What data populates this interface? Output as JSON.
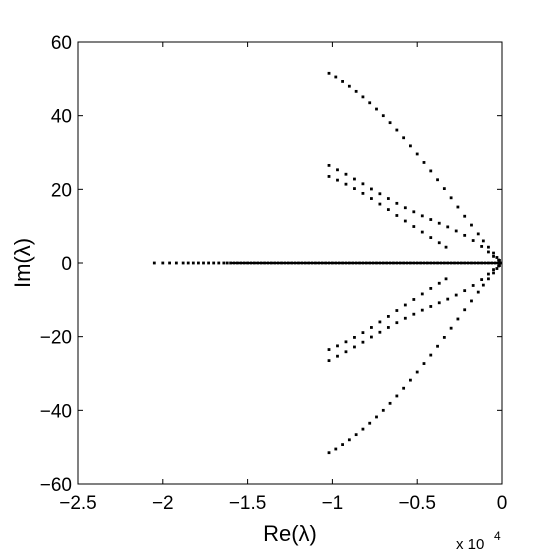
{
  "chart_data": {
    "type": "scatter",
    "title": "",
    "xlabel": "Re(λ)",
    "ylabel": "Im(λ)",
    "x_scale_note": "x 10",
    "x_scale_exponent": "4",
    "xlim": [
      -2.5,
      0
    ],
    "ylim": [
      -60,
      60
    ],
    "x_ticks": [
      -2.5,
      -2,
      -1.5,
      -1,
      -0.5,
      0
    ],
    "x_tick_labels": [
      "−2.5",
      "−2",
      "−1.5",
      "−1",
      "−0.5",
      "0"
    ],
    "y_ticks": [
      -60,
      -40,
      -20,
      0,
      20,
      40,
      60
    ],
    "y_tick_labels": [
      "−60",
      "−40",
      "−20",
      "0",
      "20",
      "40",
      "60"
    ],
    "grid": false,
    "marker_color": "#000000",
    "series": [
      {
        "values": [
          [
            -1.02,
            51.5
          ],
          [
            -0.98,
            50.5
          ],
          [
            -0.94,
            49.3
          ],
          [
            -0.9,
            48.0
          ],
          [
            -0.86,
            46.6
          ],
          [
            -0.82,
            45.1
          ],
          [
            -0.78,
            43.5
          ],
          [
            -0.74,
            41.8
          ],
          [
            -0.7,
            40.0
          ],
          [
            -0.66,
            38.1
          ],
          [
            -0.62,
            36.1
          ],
          [
            -0.58,
            34.0
          ],
          [
            -0.54,
            31.8
          ],
          [
            -0.5,
            29.6
          ],
          [
            -0.46,
            27.3
          ],
          [
            -0.42,
            25.0
          ],
          [
            -0.38,
            22.6
          ],
          [
            -0.34,
            20.2
          ],
          [
            -0.3,
            17.7
          ],
          [
            -0.26,
            15.2
          ],
          [
            -0.22,
            12.7
          ],
          [
            -0.18,
            10.3
          ],
          [
            -0.14,
            7.9
          ],
          [
            -0.11,
            6.0
          ],
          [
            -0.08,
            4.3
          ],
          [
            -0.05,
            2.7
          ],
          [
            -0.03,
            1.5
          ],
          [
            -0.015,
            0.7
          ],
          [
            -1.02,
            26.5
          ],
          [
            -0.97,
            25.3
          ],
          [
            -0.92,
            24.1
          ],
          [
            -0.87,
            22.8
          ],
          [
            -0.82,
            21.5
          ],
          [
            -0.77,
            20.1
          ],
          [
            -0.72,
            18.8
          ],
          [
            -0.67,
            17.5
          ],
          [
            -0.62,
            16.2
          ],
          [
            -0.57,
            15.0
          ],
          [
            -0.52,
            13.9
          ],
          [
            -0.47,
            12.8
          ],
          [
            -0.42,
            11.8
          ],
          [
            -0.37,
            10.8
          ],
          [
            -0.32,
            9.8
          ],
          [
            -0.27,
            8.7
          ],
          [
            -0.22,
            7.5
          ],
          [
            -0.17,
            6.1
          ],
          [
            -0.12,
            4.5
          ],
          [
            -0.08,
            3.0
          ],
          [
            -0.05,
            1.8
          ],
          [
            -0.02,
            0.8
          ],
          [
            -1.02,
            23.5
          ],
          [
            -0.97,
            22.5
          ],
          [
            -0.92,
            21.4
          ],
          [
            -0.87,
            20.2
          ],
          [
            -0.82,
            18.9
          ],
          [
            -0.77,
            17.5
          ],
          [
            -0.72,
            16.0
          ],
          [
            -0.67,
            14.5
          ],
          [
            -0.62,
            12.9
          ],
          [
            -0.57,
            11.4
          ],
          [
            -0.52,
            9.9
          ],
          [
            -0.47,
            8.4
          ],
          [
            -0.42,
            6.9
          ],
          [
            -0.37,
            5.5
          ],
          [
            -0.33,
            4.3
          ]
        ]
      },
      {
        "values": [
          [
            -1.02,
            -51.5
          ],
          [
            -0.98,
            -50.5
          ],
          [
            -0.94,
            -49.3
          ],
          [
            -0.9,
            -48.0
          ],
          [
            -0.86,
            -46.6
          ],
          [
            -0.82,
            -45.1
          ],
          [
            -0.78,
            -43.5
          ],
          [
            -0.74,
            -41.8
          ],
          [
            -0.7,
            -40.0
          ],
          [
            -0.66,
            -38.1
          ],
          [
            -0.62,
            -36.1
          ],
          [
            -0.58,
            -34.0
          ],
          [
            -0.54,
            -31.8
          ],
          [
            -0.5,
            -29.6
          ],
          [
            -0.46,
            -27.3
          ],
          [
            -0.42,
            -25.0
          ],
          [
            -0.38,
            -22.6
          ],
          [
            -0.34,
            -20.2
          ],
          [
            -0.3,
            -17.7
          ],
          [
            -0.26,
            -15.2
          ],
          [
            -0.22,
            -12.7
          ],
          [
            -0.18,
            -10.3
          ],
          [
            -0.14,
            -7.9
          ],
          [
            -0.11,
            -6.0
          ],
          [
            -0.08,
            -4.3
          ],
          [
            -0.05,
            -2.7
          ],
          [
            -0.03,
            -1.5
          ],
          [
            -0.015,
            -0.7
          ],
          [
            -1.02,
            -26.5
          ],
          [
            -0.97,
            -25.3
          ],
          [
            -0.92,
            -24.1
          ],
          [
            -0.87,
            -22.8
          ],
          [
            -0.82,
            -21.5
          ],
          [
            -0.77,
            -20.1
          ],
          [
            -0.72,
            -18.8
          ],
          [
            -0.67,
            -17.5
          ],
          [
            -0.62,
            -16.2
          ],
          [
            -0.57,
            -15.0
          ],
          [
            -0.52,
            -13.9
          ],
          [
            -0.47,
            -12.8
          ],
          [
            -0.42,
            -11.8
          ],
          [
            -0.37,
            -10.8
          ],
          [
            -0.32,
            -9.8
          ],
          [
            -0.27,
            -8.7
          ],
          [
            -0.22,
            -7.5
          ],
          [
            -0.17,
            -6.1
          ],
          [
            -0.12,
            -4.5
          ],
          [
            -0.08,
            -3.0
          ],
          [
            -0.05,
            -1.8
          ],
          [
            -0.02,
            -0.8
          ],
          [
            -1.02,
            -23.5
          ],
          [
            -0.97,
            -22.5
          ],
          [
            -0.92,
            -21.4
          ],
          [
            -0.87,
            -20.2
          ],
          [
            -0.82,
            -18.9
          ],
          [
            -0.77,
            -17.5
          ],
          [
            -0.72,
            -16.0
          ],
          [
            -0.67,
            -14.5
          ],
          [
            -0.62,
            -12.9
          ],
          [
            -0.57,
            -11.4
          ],
          [
            -0.52,
            -9.9
          ],
          [
            -0.47,
            -8.4
          ],
          [
            -0.42,
            -6.9
          ],
          [
            -0.37,
            -5.5
          ],
          [
            -0.33,
            -4.3
          ]
        ]
      },
      {
        "values": [
          [
            -2.05,
            0
          ],
          [
            -2.0,
            0
          ],
          [
            -1.96,
            0
          ],
          [
            -1.92,
            0
          ],
          [
            -1.88,
            0
          ],
          [
            -1.85,
            0
          ],
          [
            -1.82,
            0
          ],
          [
            -1.79,
            0
          ],
          [
            -1.76,
            0
          ],
          [
            -1.73,
            0
          ],
          [
            -1.7,
            0
          ],
          [
            -1.67,
            0
          ],
          [
            -1.64,
            0
          ],
          [
            -1.62,
            0
          ],
          [
            -1.6,
            0
          ],
          [
            -1.58,
            0
          ],
          [
            -1.56,
            0
          ],
          [
            -1.54,
            0
          ],
          [
            -1.52,
            0
          ],
          [
            -1.5,
            0
          ],
          [
            -1.48,
            0
          ],
          [
            -1.46,
            0
          ],
          [
            -1.44,
            0
          ],
          [
            -1.42,
            0
          ],
          [
            -1.4,
            0
          ],
          [
            -1.38,
            0
          ],
          [
            -1.36,
            0
          ],
          [
            -1.34,
            0
          ],
          [
            -1.32,
            0
          ],
          [
            -1.3,
            0
          ],
          [
            -1.28,
            0
          ],
          [
            -1.26,
            0
          ],
          [
            -1.24,
            0
          ],
          [
            -1.22,
            0
          ],
          [
            -1.2,
            0
          ],
          [
            -1.18,
            0
          ],
          [
            -1.16,
            0
          ],
          [
            -1.14,
            0
          ],
          [
            -1.12,
            0
          ],
          [
            -1.1,
            0
          ],
          [
            -1.08,
            0
          ],
          [
            -1.06,
            0
          ],
          [
            -1.04,
            0
          ],
          [
            -1.02,
            0
          ],
          [
            -1.0,
            0
          ],
          [
            -0.98,
            0
          ],
          [
            -0.96,
            0
          ],
          [
            -0.94,
            0
          ],
          [
            -0.92,
            0
          ],
          [
            -0.9,
            0
          ],
          [
            -0.88,
            0
          ],
          [
            -0.86,
            0
          ],
          [
            -0.84,
            0
          ],
          [
            -0.82,
            0
          ],
          [
            -0.8,
            0
          ],
          [
            -0.78,
            0
          ],
          [
            -0.76,
            0
          ],
          [
            -0.74,
            0
          ],
          [
            -0.72,
            0
          ],
          [
            -0.7,
            0
          ],
          [
            -0.68,
            0
          ],
          [
            -0.66,
            0
          ],
          [
            -0.64,
            0
          ],
          [
            -0.62,
            0
          ],
          [
            -0.6,
            0
          ],
          [
            -0.58,
            0
          ],
          [
            -0.56,
            0
          ],
          [
            -0.54,
            0
          ],
          [
            -0.52,
            0
          ],
          [
            -0.5,
            0
          ],
          [
            -0.48,
            0
          ],
          [
            -0.46,
            0
          ],
          [
            -0.44,
            0
          ],
          [
            -0.42,
            0
          ],
          [
            -0.4,
            0
          ],
          [
            -0.38,
            0
          ],
          [
            -0.36,
            0
          ],
          [
            -0.34,
            0
          ],
          [
            -0.32,
            0
          ],
          [
            -0.3,
            0
          ],
          [
            -0.28,
            0
          ],
          [
            -0.26,
            0
          ],
          [
            -0.24,
            0
          ],
          [
            -0.22,
            0
          ],
          [
            -0.2,
            0
          ],
          [
            -0.18,
            0
          ],
          [
            -0.16,
            0
          ],
          [
            -0.14,
            0
          ],
          [
            -0.12,
            0
          ],
          [
            -0.1,
            0
          ],
          [
            -0.08,
            0
          ],
          [
            -0.06,
            0
          ],
          [
            -0.04,
            0
          ],
          [
            -0.02,
            0
          ],
          [
            -0.01,
            0
          ]
        ]
      }
    ]
  }
}
